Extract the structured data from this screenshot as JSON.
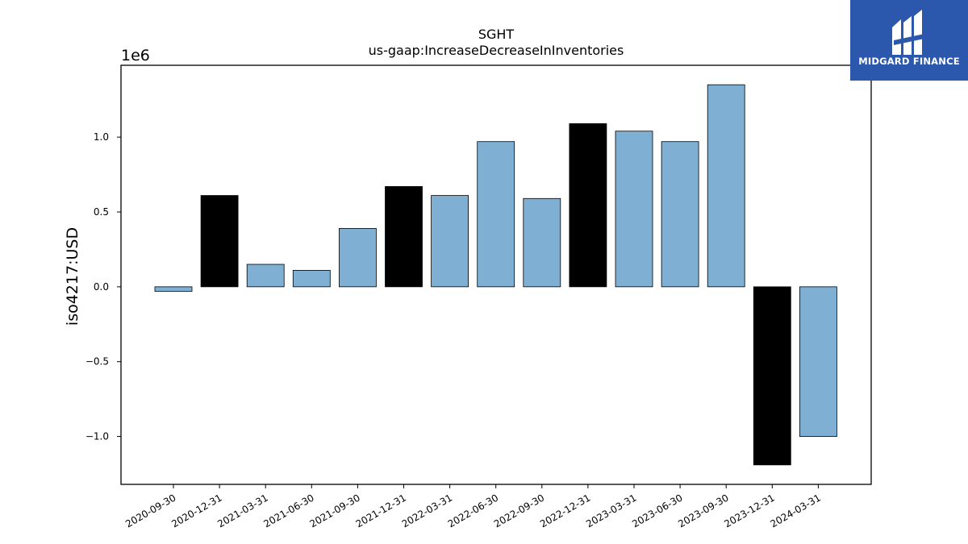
{
  "chart_data": {
    "type": "bar",
    "title": "SGHT",
    "subtitle": "us-gaap:IncreaseDecreaseInInventories",
    "ylabel": "iso4217:USD",
    "xlabel": "",
    "offset_label": "1e6",
    "ylim": [
      -1.32,
      1.48
    ],
    "yticks": [
      -1.0,
      -0.5,
      0.0,
      0.5,
      1.0
    ],
    "ytick_labels": [
      "−1.0",
      "−0.5",
      "0.0",
      "0.5",
      "1.0"
    ],
    "categories": [
      "2020-09-30",
      "2020-12-31",
      "2021-03-31",
      "2021-06-30",
      "2021-09-30",
      "2021-12-31",
      "2022-03-31",
      "2022-06-30",
      "2022-09-30",
      "2022-12-31",
      "2023-03-31",
      "2023-06-30",
      "2023-09-30",
      "2023-12-31",
      "2024-03-31"
    ],
    "values": [
      -0.03,
      0.61,
      0.15,
      0.11,
      0.39,
      0.67,
      0.61,
      0.97,
      0.59,
      1.09,
      1.04,
      0.97,
      1.35,
      -1.19,
      -1.0
    ],
    "highlight": [
      false,
      true,
      false,
      false,
      false,
      true,
      false,
      false,
      false,
      true,
      false,
      false,
      false,
      true,
      false
    ],
    "colors": {
      "normal": "#7fb0d4",
      "highlight": "#000000",
      "edge": "#000000"
    },
    "grid": false,
    "legend": "none"
  },
  "logo": {
    "text": "MIDGARD FINANCE",
    "background": "#2b58ac"
  }
}
